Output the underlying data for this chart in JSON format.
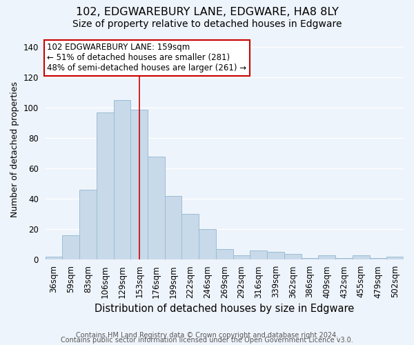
{
  "title1": "102, EDGWAREBURY LANE, EDGWARE, HA8 8LY",
  "title2": "Size of property relative to detached houses in Edgware",
  "xlabel": "Distribution of detached houses by size in Edgware",
  "ylabel": "Number of detached properties",
  "categories": [
    "36sqm",
    "59sqm",
    "83sqm",
    "106sqm",
    "129sqm",
    "153sqm",
    "176sqm",
    "199sqm",
    "222sqm",
    "246sqm",
    "269sqm",
    "292sqm",
    "316sqm",
    "339sqm",
    "362sqm",
    "386sqm",
    "409sqm",
    "432sqm",
    "455sqm",
    "479sqm",
    "502sqm"
  ],
  "values": [
    2,
    16,
    46,
    97,
    105,
    99,
    68,
    42,
    30,
    20,
    7,
    3,
    6,
    5,
    4,
    1,
    3,
    1,
    3,
    1,
    2
  ],
  "bar_color": "#c8d9ea",
  "bar_edge_color": "#9bbdd4",
  "prop_line_idx": 5,
  "annotation_line1": "102 EDGWAREBURY LANE: 159sqm",
  "annotation_line2": "← 51% of detached houses are smaller (281)",
  "annotation_line3": "48% of semi-detached houses are larger (261) →",
  "annotation_box_color": "white",
  "annotation_box_edge_color": "#cc0000",
  "property_line_color": "#cc0000",
  "footnote1": "Contains HM Land Registry data © Crown copyright and database right 2024.",
  "footnote2": "Contains public sector information licensed under the Open Government Licence v3.0.",
  "ylim": [
    0,
    145
  ],
  "yticks": [
    0,
    20,
    40,
    60,
    80,
    100,
    120,
    140
  ],
  "bg_color": "#eef4fb",
  "grid_color": "white",
  "title1_fontsize": 11.5,
  "title2_fontsize": 10,
  "xlabel_fontsize": 10.5,
  "ylabel_fontsize": 9,
  "tick_fontsize": 8.5,
  "annot_fontsize": 8.5,
  "footnote_fontsize": 7
}
